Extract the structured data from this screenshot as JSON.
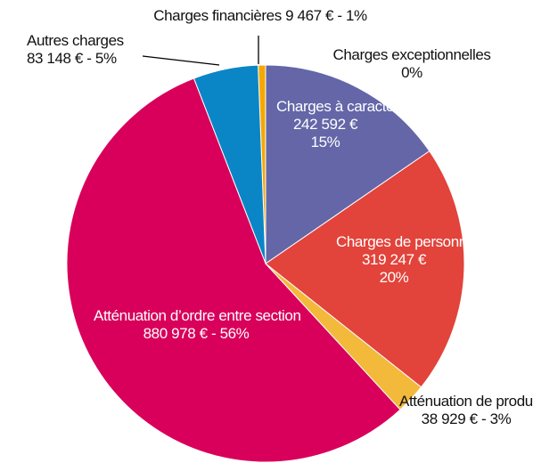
{
  "chart_data": {
    "type": "pie",
    "categories": [
      "Charges exceptionnelles",
      "Charges à caractère général",
      "Charges de personnel",
      "Atténuation de produits",
      "Atténuation d’ordre entre section",
      "Autres charges",
      "Charges financières"
    ],
    "values": [
      0,
      242592,
      319247,
      38929,
      880978,
      83148,
      9467
    ],
    "value_labels": [
      null,
      "242 592 €",
      "319 247 €",
      "38 929 €",
      "880 978 €",
      "83 148 €",
      "9 467 €"
    ],
    "percentages": [
      0,
      15,
      20,
      3,
      56,
      5,
      1
    ],
    "percentage_labels": [
      "0%",
      "15%",
      "20%",
      "3%",
      "56%",
      "5%",
      "1%"
    ],
    "label_separator": " - ",
    "colors": [
      "#9e9e9e",
      "#6466a8",
      "#e2433a",
      "#f2b93a",
      "#d8005a",
      "#0a86c6",
      "#f5a800"
    ]
  }
}
